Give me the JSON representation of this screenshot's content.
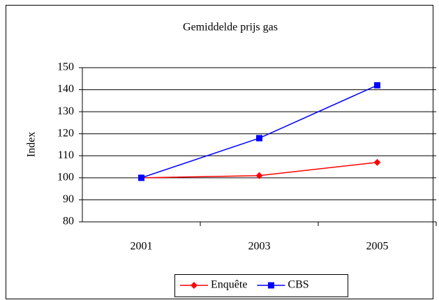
{
  "chart_data": {
    "type": "line",
    "title": "Gemiddelde prijs gas",
    "y_label": "Index",
    "categories": [
      "2001",
      "2003",
      "2005"
    ],
    "series": [
      {
        "name": "Enquête",
        "color": "#ff0000",
        "marker": "diamond",
        "values": [
          100,
          101,
          107
        ]
      },
      {
        "name": "CBS",
        "color": "#0000ff",
        "marker": "square",
        "values": [
          100,
          118,
          142
        ]
      }
    ],
    "ylim": [
      80,
      150
    ],
    "yticks": [
      80,
      90,
      100,
      110,
      120,
      130,
      140,
      150
    ],
    "grid": true,
    "legend": "bottom"
  }
}
